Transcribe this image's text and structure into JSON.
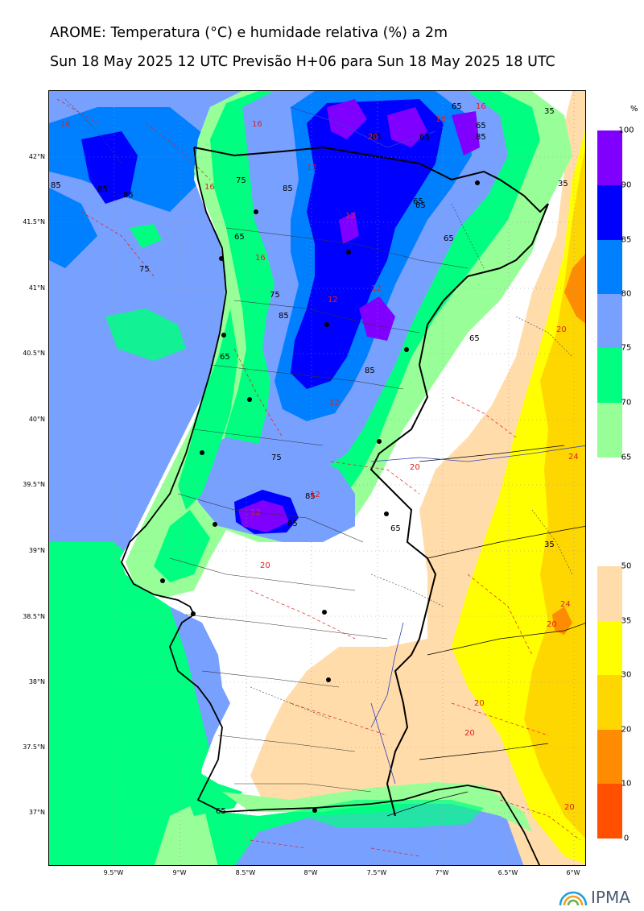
{
  "header": {
    "title": "AROME: Temperatura (°C) e humidade relativa (%) a 2m",
    "subtitle": "Sun 18 May 2025 12 UTC Previsão H+06 para Sun 18 May 2025 18 UTC"
  },
  "axes": {
    "lat_labels": [
      "42°N",
      "41.5°N",
      "41°N",
      "40.5°N",
      "40°N",
      "39.5°N",
      "39°N",
      "38.5°N",
      "38°N",
      "37.5°N",
      "37°N"
    ],
    "lon_labels": [
      "9.5°W",
      "9°W",
      "8.5°W",
      "8°W",
      "7.5°W",
      "7°W",
      "6.5°W",
      "6°W"
    ]
  },
  "humidity_colorbar": {
    "unit": "%",
    "labels": [
      "100",
      "90",
      "85",
      "80",
      "75",
      "70",
      "65"
    ],
    "colors": [
      "#8000ff",
      "#0000ff",
      "#0080ff",
      "#78a0ff",
      "#00ff80",
      "#98ff98"
    ]
  },
  "temperature_colorbar": {
    "labels": [
      "50",
      "35",
      "30",
      "20",
      "10",
      "0"
    ],
    "colors": [
      "#ffdcaa",
      "#ffff00",
      "#ffd700",
      "#ff8c00",
      "#ff5000"
    ]
  },
  "contour_labels": {
    "humidity": [
      "85",
      "85",
      "85",
      "75",
      "75",
      "65",
      "85",
      "85",
      "65",
      "65",
      "65",
      "65",
      "75",
      "85",
      "85",
      "65",
      "65",
      "75",
      "85",
      "65",
      "35",
      "35",
      "65",
      "35",
      "85",
      "85",
      "65",
      "65"
    ],
    "temperature": [
      "16",
      "16",
      "16",
      "12",
      "12",
      "12",
      "12",
      "12",
      "16",
      "20",
      "20",
      "24",
      "20",
      "20",
      "24",
      "20",
      "20",
      "20",
      "12",
      "12",
      "16",
      "16",
      "20"
    ]
  },
  "logo": {
    "text": "IPMA",
    "icon": "ipma-logo-icon"
  }
}
